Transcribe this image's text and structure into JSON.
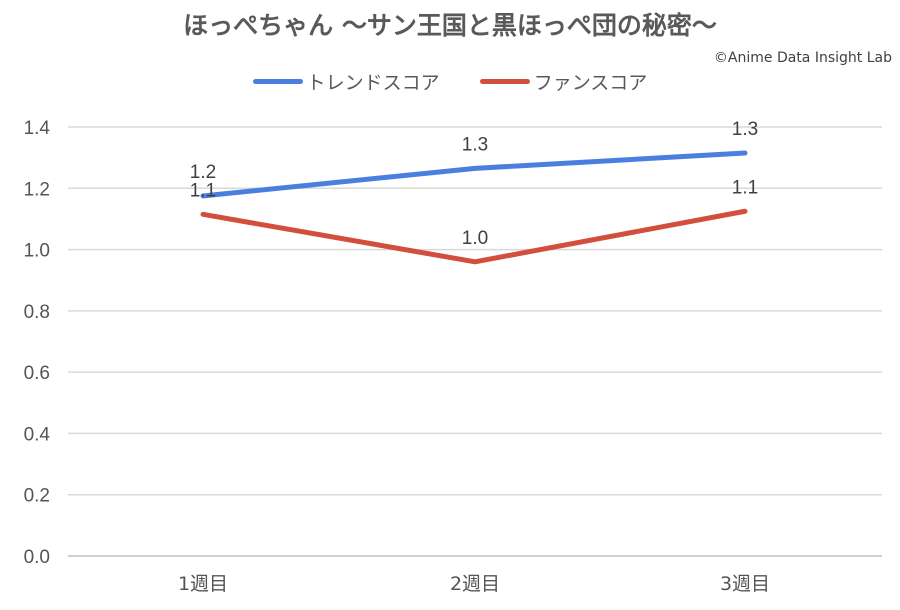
{
  "chart_data": {
    "type": "line",
    "title": "ほっぺちゃん 〜サン王国と黒ほっぺ団の秘密〜",
    "credit": "©Anime Data Insight Lab",
    "categories": [
      "1週目",
      "2週目",
      "3週目"
    ],
    "ylim": [
      0,
      1.4
    ],
    "yticks": [
      "0.0",
      "0.2",
      "0.4",
      "0.6",
      "0.8",
      "1.0",
      "1.2",
      "1.4"
    ],
    "grid": true,
    "legend_position": "top",
    "series": [
      {
        "name": "トレンドスコア",
        "color": "#4a7fe0",
        "values": [
          1.175,
          1.265,
          1.315
        ],
        "labels": [
          "1.2",
          "1.3",
          "1.3"
        ]
      },
      {
        "name": "ファンスコア",
        "color": "#d44e3e",
        "values": [
          1.115,
          0.96,
          1.125
        ],
        "labels": [
          "1.1",
          "1.0",
          "1.1"
        ]
      }
    ]
  }
}
